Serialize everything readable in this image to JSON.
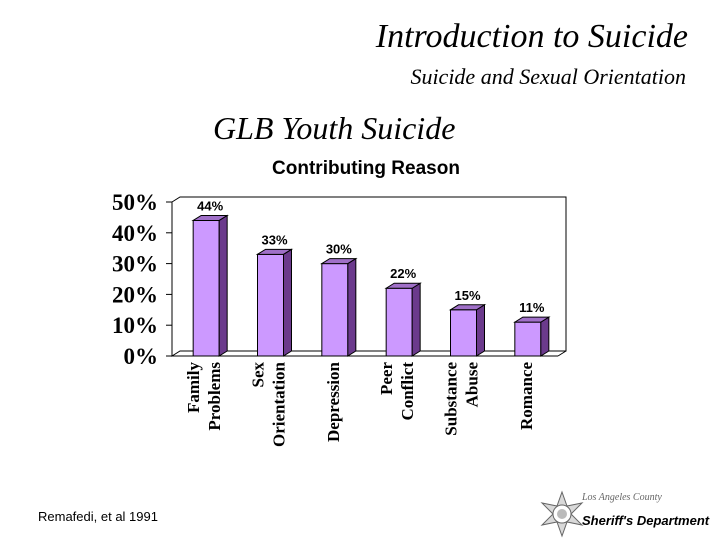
{
  "slide": {
    "title": "Introduction to Suicide",
    "subtitle": "Suicide and Sexual Orientation",
    "heading": "GLB Youth Suicide",
    "citation": "Remafedi, et al 1991",
    "logo_agency": "Los Angeles County",
    "logo_department": "Sheriff's Department",
    "logo_icon": "sheriff-star-icon"
  },
  "chart_data": {
    "type": "bar",
    "title": "Contributing Reason",
    "categories": [
      [
        "Family",
        "Problems"
      ],
      [
        "Sex",
        "Orientation"
      ],
      [
        "Depression"
      ],
      [
        "Peer",
        "Conflict"
      ],
      [
        "Substance",
        "Abuse"
      ],
      [
        "Romance"
      ]
    ],
    "values": [
      44,
      33,
      30,
      22,
      15,
      11
    ],
    "data_labels": [
      "44%",
      "33%",
      "30%",
      "22%",
      "15%",
      "11%"
    ],
    "yticks": [
      "0%",
      "10%",
      "20%",
      "30%",
      "40%",
      "50%"
    ],
    "ylim": [
      0,
      50
    ],
    "grid": false,
    "legend": "none",
    "colors": {
      "bar_front": "#cc99ff",
      "bar_side": "#6b3a8c",
      "bar_top": "#a070c8",
      "axis": "#000000"
    }
  }
}
